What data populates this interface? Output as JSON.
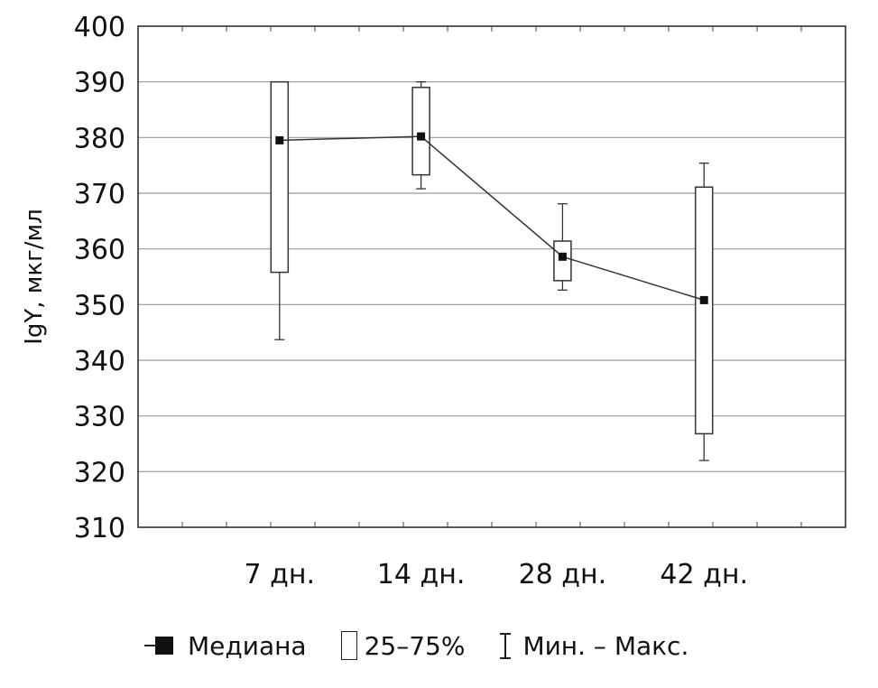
{
  "chart_data": {
    "type": "box",
    "ylabel": "IgY, мкг/мл",
    "xlabel": "",
    "ylim": [
      310,
      400
    ],
    "yticks": [
      310,
      320,
      330,
      340,
      350,
      360,
      370,
      380,
      390,
      400
    ],
    "grid": true,
    "categories": [
      "7 дн.",
      "14 дн.",
      "28 дн.",
      "42 дн."
    ],
    "median": [
      379.5,
      380.2,
      358.6,
      350.8
    ],
    "q1": [
      355.8,
      373.3,
      354.3,
      326.8
    ],
    "q3": [
      390.0,
      389.0,
      361.4,
      371.1
    ],
    "min": [
      343.7,
      370.8,
      352.6,
      322.0
    ],
    "max": [
      390.0,
      390.0,
      368.1,
      375.4
    ],
    "median_line": true,
    "legend": {
      "position": "bottom",
      "median_label": "Медиана",
      "box_label": "25–75%",
      "range_label": "Мин. – Макс."
    }
  }
}
